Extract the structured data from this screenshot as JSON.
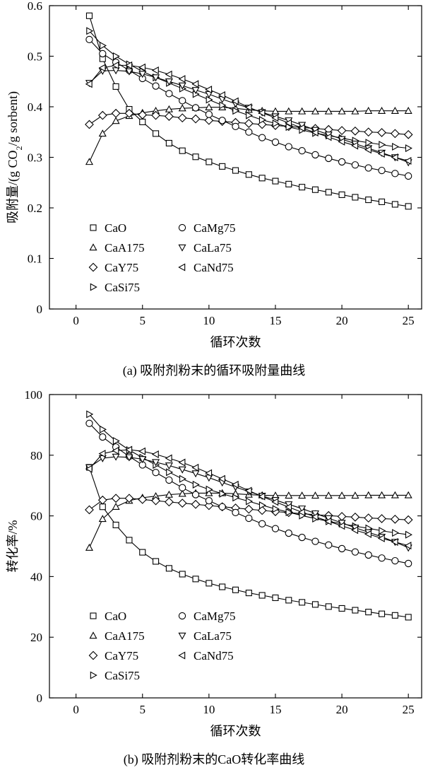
{
  "chart_data": [
    {
      "type": "line",
      "title": "",
      "caption": "(a) 吸附剂粉末的循环吸附量曲线",
      "xlabel": "循环次数",
      "ylabel_main": "吸附量/(g CO",
      "ylabel_sub": "2",
      "ylabel_tail": "/g sorbent)",
      "xlim": [
        -2,
        26
      ],
      "ylim": [
        0,
        0.6
      ],
      "xticks": [
        0,
        5,
        10,
        15,
        20,
        25
      ],
      "yticks": [
        0,
        0.1,
        0.2,
        0.3,
        0.4,
        0.5,
        0.6
      ],
      "xtick_labels": [
        "0",
        "5",
        "10",
        "15",
        "20",
        "25"
      ],
      "ytick_labels": [
        "0",
        "0.1",
        "0.2",
        "0.3",
        "0.4",
        "0.5",
        "0.6"
      ],
      "legend_position": "bottom-left",
      "x": [
        1,
        2,
        3,
        4,
        5,
        6,
        7,
        8,
        9,
        10,
        11,
        12,
        13,
        14,
        15,
        16,
        17,
        18,
        19,
        20,
        21,
        22,
        23,
        24,
        25
      ],
      "series": [
        {
          "name": "CaO",
          "marker": "square",
          "values": [
            0.58,
            0.495,
            0.44,
            0.395,
            0.37,
            0.347,
            0.328,
            0.313,
            0.301,
            0.291,
            0.282,
            0.274,
            0.266,
            0.259,
            0.253,
            0.247,
            0.241,
            0.236,
            0.231,
            0.226,
            0.221,
            0.216,
            0.212,
            0.207,
            0.203
          ]
        },
        {
          "name": "CaA175",
          "marker": "triangle-up",
          "values": [
            0.291,
            0.347,
            0.372,
            0.382,
            0.388,
            0.392,
            0.395,
            0.397,
            0.398,
            0.399,
            0.399,
            0.397,
            0.394,
            0.392,
            0.391,
            0.391,
            0.391,
            0.391,
            0.391,
            0.391,
            0.391,
            0.392,
            0.392,
            0.392,
            0.392
          ]
        },
        {
          "name": "CaY75",
          "marker": "diamond",
          "values": [
            0.365,
            0.383,
            0.387,
            0.387,
            0.384,
            0.383,
            0.381,
            0.378,
            0.376,
            0.373,
            0.371,
            0.369,
            0.367,
            0.365,
            0.363,
            0.361,
            0.359,
            0.357,
            0.355,
            0.353,
            0.352,
            0.35,
            0.349,
            0.347,
            0.345
          ]
        },
        {
          "name": "CaSi75",
          "marker": "triangle-right",
          "values": [
            0.55,
            0.521,
            0.5,
            0.484,
            0.47,
            0.458,
            0.447,
            0.436,
            0.425,
            0.414,
            0.403,
            0.392,
            0.383,
            0.374,
            0.367,
            0.36,
            0.354,
            0.348,
            0.343,
            0.338,
            0.333,
            0.329,
            0.325,
            0.321,
            0.318
          ]
        },
        {
          "name": "CaMg75",
          "marker": "circle",
          "values": [
            0.533,
            0.505,
            0.488,
            0.472,
            0.456,
            0.441,
            0.426,
            0.412,
            0.398,
            0.385,
            0.373,
            0.361,
            0.35,
            0.339,
            0.33,
            0.321,
            0.313,
            0.305,
            0.298,
            0.291,
            0.285,
            0.279,
            0.274,
            0.268,
            0.263
          ]
        },
        {
          "name": "CaLa75",
          "marker": "triangle-down",
          "values": [
            0.447,
            0.471,
            0.472,
            0.47,
            0.465,
            0.458,
            0.45,
            0.442,
            0.433,
            0.425,
            0.415,
            0.406,
            0.398,
            0.389,
            0.381,
            0.373,
            0.364,
            0.354,
            0.345,
            0.336,
            0.327,
            0.318,
            0.309,
            0.3,
            0.29
          ]
        },
        {
          "name": "CaNd75",
          "marker": "triangle-left",
          "values": [
            0.445,
            0.477,
            0.482,
            0.482,
            0.478,
            0.472,
            0.464,
            0.455,
            0.445,
            0.434,
            0.423,
            0.411,
            0.399,
            0.388,
            0.378,
            0.368,
            0.358,
            0.349,
            0.34,
            0.331,
            0.323,
            0.315,
            0.307,
            0.3,
            0.293
          ]
        }
      ]
    },
    {
      "type": "line",
      "title": "",
      "caption": "(b) 吸附剂粉末的CaO转化率曲线",
      "xlabel": "循环次数",
      "ylabel_main": "转化率/%",
      "ylabel_sub": "",
      "ylabel_tail": "",
      "xlim": [
        -2,
        26
      ],
      "ylim": [
        0,
        100
      ],
      "xticks": [
        0,
        5,
        10,
        15,
        20,
        25
      ],
      "yticks": [
        0,
        20,
        40,
        60,
        80,
        100
      ],
      "xtick_labels": [
        "0",
        "5",
        "10",
        "15",
        "20",
        "25"
      ],
      "ytick_labels": [
        "0",
        "20",
        "40",
        "60",
        "80",
        "100"
      ],
      "legend_position": "bottom-left",
      "x": [
        1,
        2,
        3,
        4,
        5,
        6,
        7,
        8,
        9,
        10,
        11,
        12,
        13,
        14,
        15,
        16,
        17,
        18,
        19,
        20,
        21,
        22,
        23,
        24,
        25
      ],
      "series": [
        {
          "name": "CaO",
          "marker": "square",
          "values": [
            76,
            63,
            57,
            52,
            48,
            45,
            42.7,
            40.8,
            39.2,
            37.8,
            36.6,
            35.6,
            34.6,
            33.8,
            33,
            32.2,
            31.5,
            30.8,
            30.1,
            29.5,
            28.9,
            28.3,
            27.7,
            27.2,
            26.6
          ]
        },
        {
          "name": "CaA175",
          "marker": "triangle-up",
          "values": [
            49.5,
            59,
            63,
            65,
            66,
            66.5,
            67,
            67.3,
            67.5,
            67.5,
            67.5,
            67.3,
            67,
            66.8,
            66.7,
            66.7,
            66.7,
            66.7,
            66.7,
            66.7,
            66.7,
            66.8,
            66.8,
            66.8,
            66.8
          ]
        },
        {
          "name": "CaY75",
          "marker": "diamond",
          "values": [
            62,
            65.2,
            65.8,
            65.8,
            65.4,
            65,
            64.6,
            64.2,
            63.8,
            63.4,
            63,
            62.6,
            62.2,
            61.8,
            61.4,
            61.1,
            60.7,
            60.4,
            60.1,
            59.8,
            59.6,
            59.3,
            59.1,
            58.9,
            58.7
          ]
        },
        {
          "name": "CaSi75",
          "marker": "triangle-right",
          "values": [
            93.5,
            88.5,
            84.7,
            81.7,
            79.2,
            76.8,
            74.4,
            72.2,
            70.3,
            68.7,
            67.3,
            66,
            64.8,
            63.5,
            62.3,
            61.2,
            60.1,
            59.1,
            58.2,
            57.4,
            56.6,
            55.9,
            55.1,
            54.4,
            53.8
          ]
        },
        {
          "name": "CaMg75",
          "marker": "circle",
          "values": [
            90.5,
            86,
            82.7,
            79.6,
            76.8,
            74.3,
            71.8,
            69.3,
            67,
            65,
            63,
            61.1,
            59.2,
            57.4,
            55.8,
            54.3,
            52.9,
            51.6,
            50.4,
            49.2,
            48.1,
            47.1,
            46.1,
            45.2,
            44.3
          ]
        },
        {
          "name": "CaLa75",
          "marker": "triangle-down",
          "values": [
            76,
            79,
            79.5,
            79.3,
            78.7,
            77.7,
            76.6,
            75.3,
            74,
            72.6,
            71,
            69.5,
            68,
            66.6,
            65.2,
            63.8,
            62.4,
            60.8,
            59.2,
            57.7,
            56.1,
            54.6,
            53.1,
            51.4,
            49.5
          ]
        },
        {
          "name": "CaNd75",
          "marker": "triangle-left",
          "values": [
            75.5,
            80.5,
            81.5,
            81.8,
            81.3,
            80.3,
            79,
            77.6,
            75.9,
            74.1,
            72.2,
            70.3,
            68.3,
            66.4,
            64.6,
            62.9,
            61.2,
            59.7,
            58.2,
            56.7,
            55.3,
            54,
            52.6,
            51.4,
            50.2
          ]
        }
      ]
    }
  ]
}
